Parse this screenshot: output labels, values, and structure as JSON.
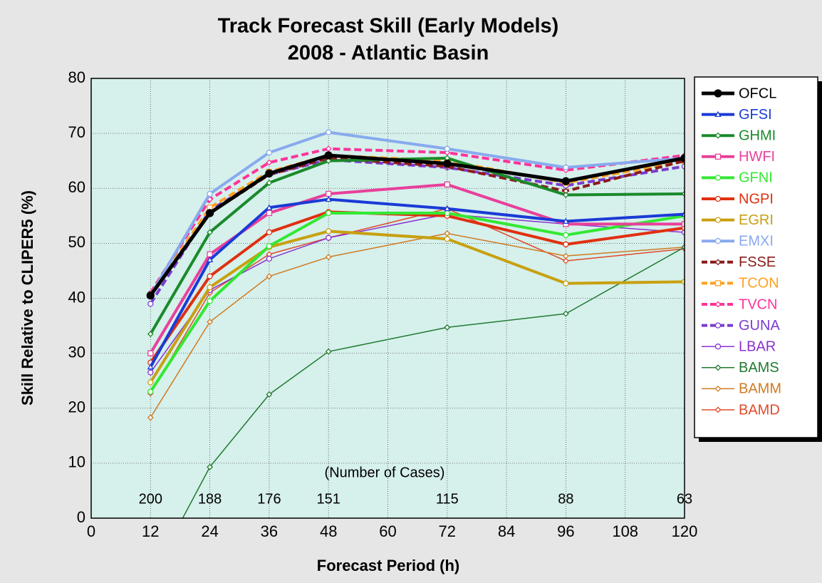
{
  "chart_data": {
    "type": "line",
    "title": "Track Forecast Skill (Early Models)",
    "subtitle": "2008 - Atlantic Basin",
    "x_label": "Forecast Period (h)",
    "y_label": "Skill Relative to CLIPER5 (%)",
    "x": [
      12,
      24,
      36,
      48,
      72,
      96,
      120
    ],
    "xlim": [
      0,
      120
    ],
    "xticks": [
      0,
      12,
      24,
      36,
      48,
      60,
      72,
      84,
      96,
      108,
      120
    ],
    "ylim": [
      0,
      80
    ],
    "yticks": [
      0,
      10,
      20,
      30,
      40,
      50,
      60,
      70,
      80
    ],
    "grid": true,
    "legend": "right",
    "cases": {
      "label": "(Number of Cases)",
      "values": [
        200,
        188,
        176,
        151,
        115,
        88,
        63
      ]
    },
    "series": [
      {
        "name": "OFCL",
        "color": "#000000",
        "width": 5,
        "dashed": false,
        "marker": "dot",
        "values": [
          40.5,
          55.5,
          62.7,
          66.0,
          64.5,
          61.3,
          65.5
        ]
      },
      {
        "name": "GFSI",
        "color": "#1a3bd6",
        "width": 4,
        "dashed": false,
        "marker": "triangle",
        "values": [
          27.5,
          47.0,
          56.5,
          58.0,
          56.3,
          54.0,
          55.3
        ]
      },
      {
        "name": "GHMI",
        "color": "#1a8a2a",
        "width": 4,
        "dashed": false,
        "marker": "diamond",
        "values": [
          33.5,
          52.0,
          61.0,
          65.0,
          65.5,
          58.8,
          59.0
        ]
      },
      {
        "name": "HWFI",
        "color": "#e8409a",
        "width": 4,
        "dashed": false,
        "marker": "square",
        "values": [
          30.0,
          48.0,
          55.5,
          59.0,
          60.7,
          53.5,
          53.5
        ]
      },
      {
        "name": "GFNI",
        "color": "#33e833",
        "width": 4,
        "dashed": false,
        "marker": "circle",
        "values": [
          23.0,
          39.5,
          49.5,
          55.5,
          55.5,
          51.5,
          55.0
        ]
      },
      {
        "name": "NGPI",
        "color": "#e03010",
        "width": 4,
        "dashed": false,
        "marker": "circle",
        "values": [
          28.3,
          44.0,
          52.0,
          55.7,
          55.0,
          49.8,
          52.8
        ]
      },
      {
        "name": "EGRI",
        "color": "#c8a010",
        "width": 4,
        "dashed": false,
        "marker": "circle",
        "values": [
          24.7,
          42.0,
          49.3,
          52.2,
          50.8,
          42.7,
          43.0
        ]
      },
      {
        "name": "EMXI",
        "color": "#88aaee",
        "width": 4,
        "dashed": false,
        "marker": "circle",
        "values": [
          40.5,
          59.0,
          66.5,
          70.2,
          67.2,
          63.8,
          65.5
        ]
      },
      {
        "name": "FSSE",
        "color": "#8b1a1a",
        "width": 4,
        "dashed": true,
        "marker": "diamond",
        "values": [
          40.5,
          55.5,
          62.5,
          65.5,
          64.0,
          59.5,
          65.0
        ]
      },
      {
        "name": "TCON",
        "color": "#ffa020",
        "width": 4,
        "dashed": true,
        "marker": "square",
        "values": [
          40.5,
          56.5,
          63.0,
          66.0,
          65.0,
          61.0,
          65.0
        ]
      },
      {
        "name": "TVCN",
        "color": "#ff3399",
        "width": 4,
        "dashed": true,
        "marker": "diamond",
        "values": [
          41.0,
          58.0,
          64.7,
          67.2,
          66.5,
          63.3,
          66.0
        ]
      },
      {
        "name": "GUNA",
        "color": "#7a3cd0",
        "width": 4,
        "dashed": true,
        "marker": "circle",
        "values": [
          39.0,
          56.0,
          62.5,
          65.2,
          63.8,
          60.5,
          64.0
        ]
      },
      {
        "name": "LBAR",
        "color": "#8a30d0",
        "width": 1.5,
        "dashed": false,
        "marker": "circle",
        "values": [
          26.5,
          41.5,
          47.2,
          51.0,
          55.3,
          53.5,
          52.0
        ]
      },
      {
        "name": "BAMS",
        "color": "#207a30",
        "width": 1.5,
        "dashed": false,
        "marker": "diamond",
        "values": [
          -11,
          9.3,
          22.5,
          30.3,
          34.7,
          37.2,
          49.3
        ]
      },
      {
        "name": "BAMM",
        "color": "#d07a20",
        "width": 1.5,
        "dashed": false,
        "marker": "diamond",
        "values": [
          18.3,
          35.7,
          44.0,
          47.5,
          51.8,
          47.7,
          49.3
        ]
      },
      {
        "name": "BAMD",
        "color": "#e04a2a",
        "width": 1.5,
        "dashed": false,
        "marker": "diamond",
        "values": [
          22.7,
          41.0,
          48.0,
          51.0,
          56.3,
          46.8,
          49.0
        ]
      }
    ]
  }
}
